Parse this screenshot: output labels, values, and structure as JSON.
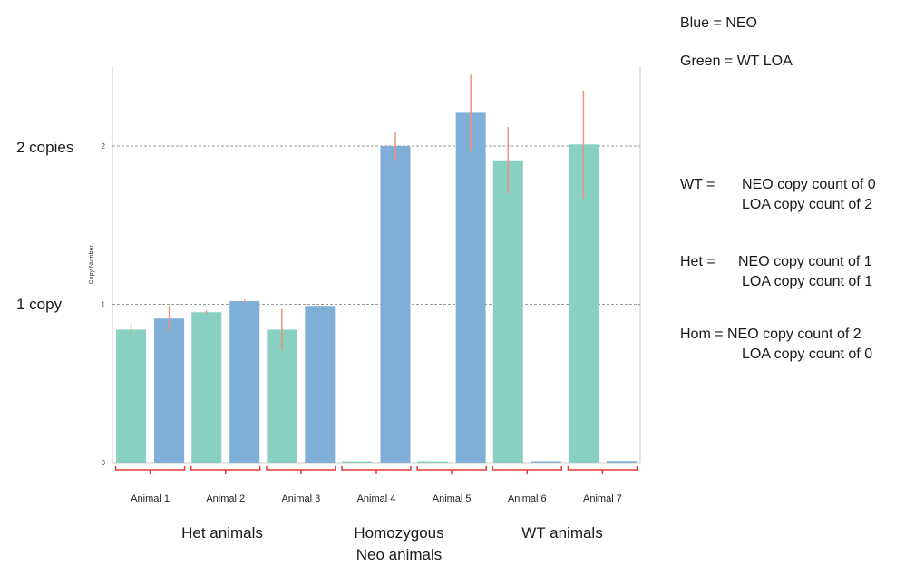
{
  "chart_data": {
    "type": "bar",
    "ylabel": "Copy Number",
    "ylim": [
      0,
      2.5
    ],
    "yticks": [
      0,
      1,
      2
    ],
    "grid": true,
    "categories": [
      "Animal 1",
      "Animal 2",
      "Animal 3",
      "Animal 4",
      "Animal 5",
      "Animal 6",
      "Animal 7"
    ],
    "series": [
      {
        "name": "WT LOA",
        "color": "#88d1c2",
        "values": [
          0.84,
          0.95,
          0.84,
          0.0,
          0.0,
          1.91,
          2.01
        ],
        "errors": [
          0.04,
          0.01,
          0.13,
          0.0,
          0.0,
          0.21,
          0.34
        ]
      },
      {
        "name": "NEO",
        "color": "#7fafd6",
        "values": [
          0.91,
          1.02,
          0.99,
          2.0,
          2.21,
          0.0,
          0.01
        ],
        "errors": [
          0.08,
          0.01,
          0.0,
          0.09,
          0.24,
          0.0,
          0.0
        ]
      }
    ],
    "error_color": "#f2907a"
  },
  "side_labels": {
    "two": "2 copies",
    "one": "1 copy"
  },
  "legend": {
    "blue": "Blue = NEO",
    "green": "Green = WT LOA"
  },
  "definitions": [
    {
      "key": "WT =",
      "line1": "NEO copy count of 0",
      "line2": "LOA copy count of 2"
    },
    {
      "key": "Het =",
      "line1": "NEO copy count of 1",
      "line2": "LOA copy count of 1"
    },
    {
      "key": "Hom =",
      "line1": "NEO copy count of 2",
      "line2": "LOA copy count of 0"
    }
  ],
  "groups": {
    "het": "Het animals",
    "hom_line1": "Homozygous",
    "hom_line2": "Neo animals",
    "wt": "WT animals"
  }
}
